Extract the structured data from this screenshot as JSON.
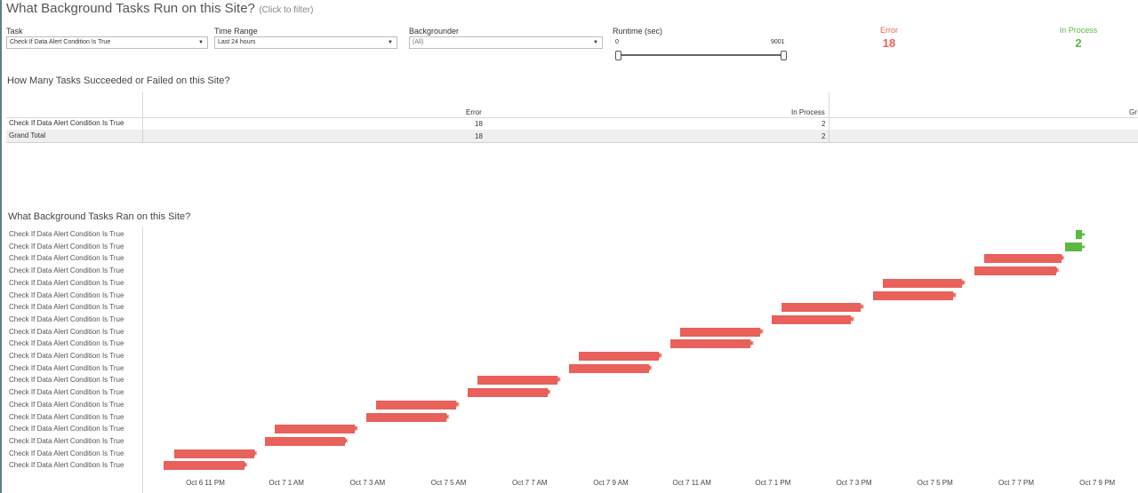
{
  "header": {
    "title": "What Background Tasks Run on this Site?",
    "title_hint": "(Click to filter)"
  },
  "filters": {
    "task": {
      "label": "Task",
      "value": "Check If Data Alert Condition Is True"
    },
    "time_range": {
      "label": "Time Range",
      "value": "Last 24 hours"
    },
    "backgrounder": {
      "label": "Backgrounder",
      "value": "(All)"
    },
    "runtime": {
      "label": "Runtime (sec)",
      "min": "0",
      "max": "9001"
    }
  },
  "kpis": {
    "error": {
      "label": "Error",
      "value": "18",
      "color": "#e8615a"
    },
    "in_process": {
      "label": "In Process",
      "value": "2",
      "color": "#59b942"
    }
  },
  "summary_table": {
    "title": "How Many Tasks Succeeded or Failed on this Site?",
    "columns": [
      "Error",
      "In Process",
      "Gr"
    ],
    "rows": [
      {
        "name": "Check If Data Alert Condition Is True",
        "error": "18",
        "in_process": "2"
      },
      {
        "name": "Grand Total",
        "error": "18",
        "in_process": "2"
      }
    ]
  },
  "gantt": {
    "title": "What Background Tasks Ran on this Site?",
    "row_label": "Check If Data Alert Condition Is True",
    "x_ticks": [
      "Oct 6 11 PM",
      "Oct 7 1 AM",
      "Oct 7 3 AM",
      "Oct 7 5 AM",
      "Oct 7 7 AM",
      "Oct 7 9 AM",
      "Oct 7 11 AM",
      "Oct 7 1 PM",
      "Oct 7 3 PM",
      "Oct 7 5 PM",
      "Oct 7 7 PM",
      "Oct 7 9 PM"
    ],
    "axis_start_hour": 23,
    "axis_end_hour": 45,
    "tasks": [
      {
        "status": "In Process",
        "start_hour": 44.47,
        "end_hour": 44.63
      },
      {
        "status": "In Process",
        "start_hour": 44.2,
        "end_hour": 44.63
      },
      {
        "status": "Error",
        "start_hour": 42.2,
        "end_hour": 44.11
      },
      {
        "status": "Error",
        "start_hour": 41.97,
        "end_hour": 43.98
      },
      {
        "status": "Error",
        "start_hour": 39.7,
        "end_hour": 41.67
      },
      {
        "status": "Error",
        "start_hour": 39.48,
        "end_hour": 41.45
      },
      {
        "status": "Error",
        "start_hour": 37.2,
        "end_hour": 39.17
      },
      {
        "status": "Error",
        "start_hour": 36.98,
        "end_hour": 38.93
      },
      {
        "status": "Error",
        "start_hour": 34.7,
        "end_hour": 36.69
      },
      {
        "status": "Error",
        "start_hour": 34.48,
        "end_hour": 36.45
      },
      {
        "status": "Error",
        "start_hour": 32.2,
        "end_hour": 34.19
      },
      {
        "status": "Error",
        "start_hour": 31.96,
        "end_hour": 33.94
      },
      {
        "status": "Error",
        "start_hour": 29.7,
        "end_hour": 31.69
      },
      {
        "status": "Error",
        "start_hour": 29.46,
        "end_hour": 31.44
      },
      {
        "status": "Error",
        "start_hour": 27.2,
        "end_hour": 29.19
      },
      {
        "status": "Error",
        "start_hour": 26.96,
        "end_hour": 28.94
      },
      {
        "status": "Error",
        "start_hour": 24.7,
        "end_hour": 26.69
      },
      {
        "status": "Error",
        "start_hour": 24.46,
        "end_hour": 26.44
      },
      {
        "status": "Error",
        "start_hour": 22.23,
        "end_hour": 24.2
      },
      {
        "status": "Error",
        "start_hour": 21.97,
        "end_hour": 23.96
      }
    ],
    "colors": {
      "Error": "#e8615a",
      "In Process": "#59b942"
    }
  }
}
